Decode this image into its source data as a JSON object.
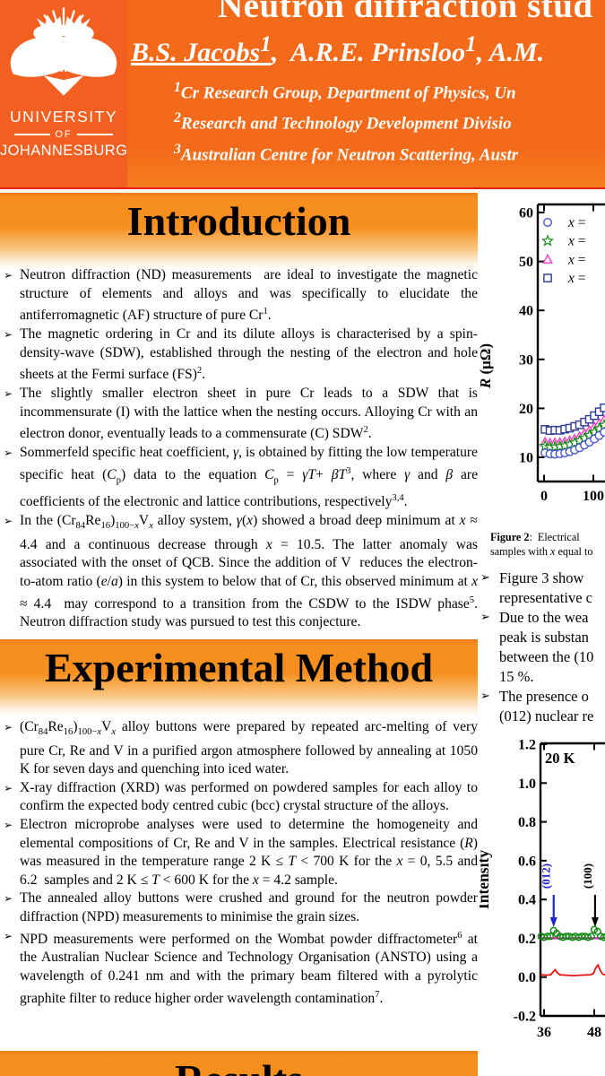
{
  "bullet_char": "➢",
  "header": {
    "title": "Neutron diffraction stud",
    "authors_html": "<u>B.S. Jacobs<sup>1</sup></u>,&nbsp; A.R.E. Prinsloo<sup>1</sup>, A.M.",
    "affiliations_html": [
      "<sup>1</sup>Cr Research Group, Department of Physics, Un",
      "<sup>2</sup>Research and Technology Development Divisio",
      "<sup>3</sup>Australian Centre for Neutron Scattering, Austr"
    ],
    "logo": {
      "line1": "UNIVERSITY",
      "line2": "OF",
      "line3": "JOHANNESBURG"
    }
  },
  "sections": {
    "introduction": {
      "title": "Introduction",
      "bullets_html": [
        "Neutron diffraction (ND) measurements&nbsp; are ideal to investigate the magnetic structure of elements and alloys and was specifically to elucidate the antiferromagnetic (AF) structure of pure Cr<sup>1</sup>.",
        "The magnetic ordering in Cr and its dilute alloys is characterised by a spin-density-wave (SDW), established through the nesting of the electron and hole sheets at the Fermi surface (FS)<sup>2</sup>.",
        "The slightly smaller electron sheet in pure Cr leads to a SDW that is incommensurate (I) with the lattice when the nesting occurs. Alloying Cr with an electron donor, eventually leads to a commensurate (C) SDW<sup>2</sup>.",
        "Sommerfeld specific heat coefficient, <i>γ</i>, is obtained by fitting the low temperature specific heat (<i>C</i><sub>p</sub>) data to the equation <i>C</i><sub>p</sub> = <i>γT</i>+ <i>βT</i><sup>3</sup>, where <i>γ</i> and <i>β</i> are coefficients of the electronic and lattice contributions, respectively<sup>3,4</sup>.",
        "In the (Cr<sub>84</sub>Re<sub>16</sub>)<sub>100−<i>x</i></sub>V<sub><i>x</i></sub> alloy system, <i>γ</i>(<i>x</i>) showed a broad deep minimum at <i>x</i> ≈ 4.4 and a continuous decrease through <i>x</i> = 10.5. The latter anomaly was associated with the onset of QCB. Since the addition of V&nbsp; reduces the electron-to-atom ratio (<i>e</i>/<i>a</i>) in this system to below that of Cr, this observed minimum at <i>x</i> ≈ 4.4&nbsp; may correspond to a transition from the CSDW to the ISDW phase<sup>5</sup>. Neutron diffraction study was pursued to test this conjecture."
      ]
    },
    "method": {
      "title": "Experimental Method",
      "bullets_html": [
        "(Cr<sub>84</sub>Re<sub>16</sub>)<sub>100−<i>x</i></sub>V<sub><i>x</i></sub> alloy buttons were prepared by repeated arc-melting of very pure Cr, Re and V in a purified argon atmosphere followed by annealing at 1050 K for seven days and quenching into iced water.",
        "X-ray diffraction (XRD) was performed on powdered samples for each alloy to confirm the expected body centred cubic (bcc) crystal structure of the alloys.",
        "Electron microprobe analyses were used to determine the homogeneity and elemental compositions of Cr, Re and V in the samples. Electrical resistance (<i>R</i>) was measured in the temperature range 2 K ≤ <i>T</i> &lt; 700 K for the <i>x</i> = 0, 5.5 and 6.2&nbsp; samples and 2 K ≤ <i>T</i> &lt; 600 K for the <i>x</i> = 4.2 sample.",
        "The annealed alloy buttons were crushed and ground for the neutron powder diffraction (NPD) measurements to minimise the grain sizes.",
        "NPD measurements were performed on the Wombat powder diffractometer<sup>6</sup> at the Australian Nuclear Science and Technology Organisation (ANSTO) using a wavelength of 0.241 nm and with the primary beam filtered with a pyrolytic graphite filter to reduce higher order wavelength contamination<sup>7</sup>."
      ]
    },
    "results": {
      "title": "Results"
    }
  },
  "right_column": {
    "figure2_caption_html": "<b>Figure 2</b>:&nbsp; Electrical<br>samples with <i>x</i> equal to",
    "bullets_html": [
      "Figure 3 show<br>representative c",
      "Due to the wea<br>peak is substan<br>between the (10<br>15 %.",
      "The presence o<br>(012) nuclear re"
    ]
  },
  "colors": {
    "banner_orange": "#f36a1a",
    "logo_orange": "#f25f20",
    "section_orange": "#f68f1e",
    "divider_red": "#ea2017",
    "series_blue": "#4856d0",
    "series_green": "#128a12",
    "series_magenta": "#f23cc6",
    "series_navy": "#2b3a94",
    "annotation_blue": "#2125cd",
    "line_magenta": "#f410d8",
    "line_red": "#e81212"
  },
  "chart_data": [
    {
      "id": "electrical-resistance-vs-temperature",
      "type": "scatter",
      "ylabel_italic": "R",
      "ylabel_rest": " (μΩ)",
      "xlabel": "",
      "ylim": [
        5,
        60
      ],
      "xlim_visible": [
        0,
        123
      ],
      "y_ticks": [
        "60",
        "50",
        "40",
        "30",
        "20",
        "10"
      ],
      "x_ticks": [
        "0",
        "100"
      ],
      "grid": false,
      "legend_position": "top-left-inside",
      "legend": [
        {
          "marker": "circle",
          "color": "#4856d0",
          "label": "x ="
        },
        {
          "marker": "star",
          "color": "#128a12",
          "label": "x ="
        },
        {
          "marker": "triangle",
          "color": "#f23cc6",
          "label": "x ="
        },
        {
          "marker": "square",
          "color": "#2b3a94",
          "label": "x ="
        }
      ],
      "x": [
        2,
        12,
        22,
        32,
        42,
        52,
        62,
        72,
        82,
        92,
        102,
        112,
        122
      ],
      "series": [
        {
          "name": "x = (navy squares)",
          "marker": "square",
          "color": "#2b3a94",
          "values": [
            15.7,
            15.45,
            15.55,
            15.5,
            15.75,
            15.95,
            16.3,
            16.65,
            17.2,
            17.75,
            18.5,
            19.3,
            20.1
          ]
        },
        {
          "name": "x = (magenta triangles)",
          "marker": "triangle",
          "color": "#f23cc6",
          "values": [
            13.1,
            12.9,
            12.95,
            13.0,
            13.15,
            13.4,
            13.75,
            14.25,
            14.85,
            15.5,
            16.2,
            16.95,
            17.6
          ]
        },
        {
          "name": "x = (green stars)",
          "marker": "star",
          "color": "#128a12",
          "values": [
            12.3,
            12.1,
            12.15,
            12.2,
            12.35,
            12.6,
            12.95,
            13.4,
            13.9,
            14.5,
            15.15,
            15.85,
            16.55
          ]
        },
        {
          "name": "x = (blue circles)",
          "marker": "circle",
          "color": "#4856d0",
          "values": [
            10.9,
            10.7,
            10.65,
            10.75,
            10.9,
            11.15,
            11.5,
            11.95,
            12.5,
            13.1,
            13.75,
            14.45,
            15.15
          ]
        }
      ]
    },
    {
      "id": "npd-intensity-pattern",
      "type": "line-scatter",
      "ylabel": "Intensity",
      "annotation": "20 K",
      "ylim": [
        -0.2,
        1.2
      ],
      "xlim_visible": [
        35.1,
        52.3
      ],
      "y_ticks": [
        "1.2",
        "1.0",
        "0.8",
        "0.6",
        "0.4",
        "0.2",
        "0.0",
        "-0.2"
      ],
      "x_ticks": [
        "36",
        "48"
      ],
      "grid": false,
      "peak_labels": [
        {
          "text": "(012)",
          "color": "#2125cd",
          "x": 38.3
        },
        {
          "text": "(100)",
          "color": "#000000",
          "x": 48.2
        }
      ],
      "series": [
        {
          "name": "fit line",
          "type": "line",
          "color": "#f410d8",
          "stroke_width": 2.2,
          "x": [
            35.2,
            52.3
          ],
          "values": [
            0.2,
            0.2
          ]
        },
        {
          "name": "measured data",
          "type": "scatter",
          "marker": "circle",
          "color": "#128a12",
          "x": [
            35.3,
            36.0,
            36.8,
            37.5,
            38.3,
            39.0,
            39.8,
            40.5,
            41.3,
            42.0,
            42.8,
            43.5,
            44.3,
            45.0,
            45.8,
            46.5,
            47.3,
            48.0,
            48.8,
            49.5,
            50.3,
            51.0,
            51.8
          ],
          "values": [
            0.21,
            0.205,
            0.21,
            0.21,
            0.24,
            0.225,
            0.21,
            0.205,
            0.21,
            0.21,
            0.205,
            0.21,
            0.205,
            0.21,
            0.21,
            0.205,
            0.21,
            0.245,
            0.235,
            0.21,
            0.205,
            0.21,
            0.205
          ]
        },
        {
          "name": "difference curve",
          "type": "line",
          "color": "#e81212",
          "stroke_width": 1.8,
          "x": [
            35.2,
            36.5,
            37.6,
            38.2,
            38.7,
            39.2,
            39.8,
            41.0,
            43.0,
            45.0,
            47.0,
            47.8,
            48.3,
            48.9,
            49.4,
            50.0,
            51.0,
            52.3
          ],
          "values": [
            0.012,
            0.01,
            0.012,
            0.028,
            0.038,
            0.022,
            0.012,
            0.01,
            0.008,
            0.01,
            0.012,
            0.018,
            0.045,
            0.062,
            0.035,
            0.015,
            0.01,
            0.008
          ]
        }
      ]
    }
  ]
}
